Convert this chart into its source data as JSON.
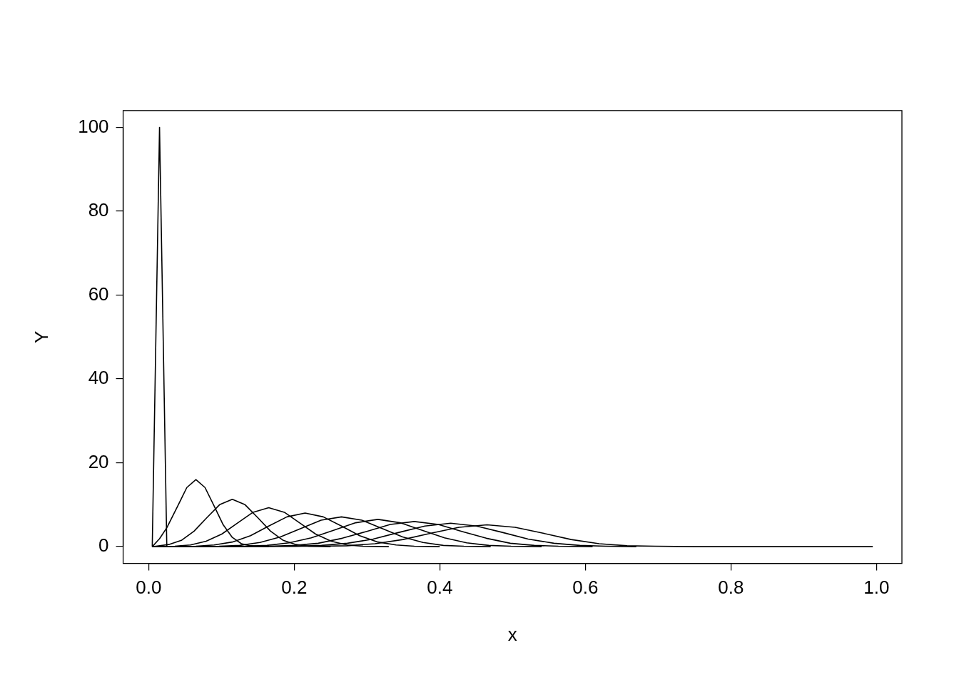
{
  "chart_data": {
    "type": "line",
    "xlabel": "x",
    "ylabel": "Y",
    "xlim": [
      -0.035,
      1.035
    ],
    "ylim": [
      -4,
      104
    ],
    "xticks": [
      {
        "value": 0,
        "label": "0.0"
      },
      0.2,
      0.4,
      0.6,
      0.8,
      {
        "value": 1,
        "label": "1.0"
      }
    ],
    "yticks": [
      0,
      20,
      40,
      60,
      80,
      100
    ],
    "grid": false,
    "legend": false,
    "marker": "none",
    "line_style": "solid",
    "series": [
      {
        "color": "#000000",
        "x": [
          0.005,
          0.015,
          0.025,
          0.035
        ],
        "values": [
          0,
          100,
          0,
          0
        ]
      },
      {
        "color": "#000000",
        "x": [
          0.005,
          0.015,
          0.025,
          0.04,
          0.0525,
          0.065,
          0.0775,
          0.09,
          0.1025,
          0.115,
          0.1275,
          0.14,
          0.165
        ],
        "values": [
          0,
          1.9,
          4.5,
          9.7,
          14.1,
          16,
          14.1,
          9.7,
          5.2,
          2.2,
          0.7,
          0.2,
          0
        ]
      },
      {
        "color": "#000000",
        "x": [
          0.005,
          0.01,
          0.0275,
          0.045,
          0.0625,
          0.08,
          0.0975,
          0.115,
          0.1325,
          0.15,
          0.1675,
          0.185,
          0.2025,
          0.22,
          0.25
        ],
        "values": [
          0,
          0.1,
          0.5,
          1.5,
          3.7,
          6.9,
          10,
          11.3,
          10,
          6.9,
          3.7,
          1.5,
          0.5,
          0.1,
          0
        ]
      },
      {
        "color": "#000000",
        "x": [
          0.005,
          0.036,
          0.0575,
          0.079,
          0.1005,
          0.122,
          0.1435,
          0.165,
          0.1865,
          0.208,
          0.2295,
          0.251,
          0.2725,
          0.294,
          0.33
        ],
        "values": [
          0,
          0.1,
          0.4,
          1.3,
          3,
          5.6,
          8.2,
          9.3,
          8.2,
          5.6,
          3,
          1.3,
          0.4,
          0.1,
          0
        ]
      },
      {
        "color": "#000000",
        "x": [
          0.005,
          0.065,
          0.09,
          0.115,
          0.14,
          0.165,
          0.19,
          0.215,
          0.24,
          0.265,
          0.29,
          0.315,
          0.34,
          0.365,
          0.4
        ],
        "values": [
          0,
          0.1,
          0.4,
          1.1,
          2.6,
          4.9,
          7.1,
          8,
          7.1,
          4.9,
          2.6,
          1.1,
          0.4,
          0.1,
          0
        ]
      },
      {
        "color": "#000000",
        "x": [
          0.005,
          0.097,
          0.125,
          0.153,
          0.181,
          0.209,
          0.237,
          0.265,
          0.293,
          0.321,
          0.349,
          0.377,
          0.405,
          0.433,
          0.47
        ],
        "values": [
          0,
          0.1,
          0.3,
          1,
          2.3,
          4.3,
          6.3,
          7.1,
          6.3,
          4.3,
          2.3,
          1,
          0.3,
          0.1,
          0
        ]
      },
      {
        "color": "#000000",
        "x": [
          0.005,
          0.132,
          0.1625,
          0.193,
          0.2235,
          0.254,
          0.2845,
          0.315,
          0.3455,
          0.376,
          0.4065,
          0.437,
          0.4675,
          0.498,
          0.54
        ],
        "values": [
          0,
          0.1,
          0.3,
          0.9,
          2.1,
          3.9,
          5.7,
          6.5,
          5.7,
          3.9,
          2.1,
          0.9,
          0.3,
          0.1,
          0
        ]
      },
      {
        "color": "#000000",
        "x": [
          0.005,
          0.167,
          0.2,
          0.233,
          0.266,
          0.299,
          0.332,
          0.365,
          0.398,
          0.431,
          0.464,
          0.497,
          0.53,
          0.563,
          0.61
        ],
        "values": [
          0,
          0.1,
          0.3,
          0.8,
          2,
          3.6,
          5.3,
          6,
          5.3,
          3.6,
          2,
          0.8,
          0.3,
          0.1,
          0
        ]
      },
      {
        "color": "#000000",
        "x": [
          0.005,
          0.202,
          0.2375,
          0.273,
          0.3085,
          0.344,
          0.3795,
          0.415,
          0.4505,
          0.486,
          0.5215,
          0.557,
          0.5925,
          0.628,
          0.67
        ],
        "values": [
          0,
          0.1,
          0.3,
          0.8,
          1.8,
          3.4,
          4.9,
          5.6,
          4.9,
          3.4,
          1.8,
          0.8,
          0.3,
          0.1,
          0
        ]
      },
      {
        "color": "#000000",
        "x": [
          0.005,
          0.234,
          0.2725,
          0.311,
          0.3495,
          0.388,
          0.4265,
          0.465,
          0.5035,
          0.542,
          0.5805,
          0.619,
          0.6575,
          0.696,
          0.75,
          0.995
        ],
        "values": [
          0,
          0.1,
          0.2,
          0.7,
          1.7,
          3.2,
          4.6,
          5.2,
          4.6,
          3.2,
          1.7,
          0.7,
          0.2,
          0.1,
          0,
          0
        ]
      }
    ]
  }
}
